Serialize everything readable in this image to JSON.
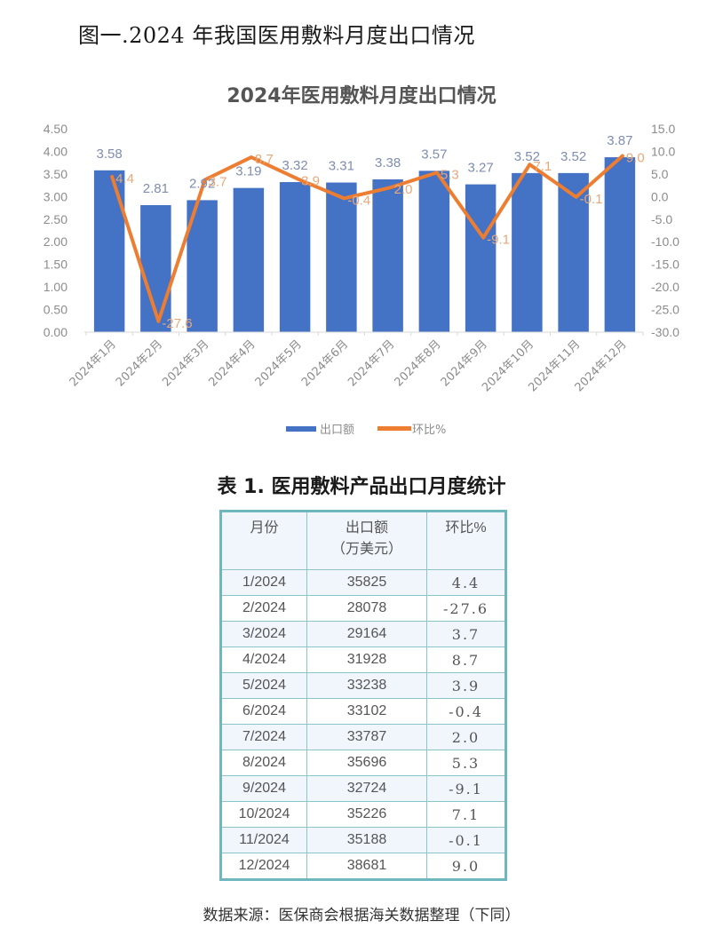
{
  "figure_caption": "图一.2024 年我国医用敷料月度出口情况",
  "chart_data": {
    "type": "bar+line",
    "title": "2024年医用敷料月度出口情况",
    "categories": [
      "2024年1月",
      "2024年2月",
      "2024年3月",
      "2024年4月",
      "2024年5月",
      "2024年6月",
      "2024年7月",
      "2024年8月",
      "2024年9月",
      "2024年10月",
      "2024年11月",
      "2024年12月"
    ],
    "series": [
      {
        "name": "出口额",
        "type": "bar",
        "axis": "left",
        "color": "#4472c4",
        "values": [
          3.58,
          2.81,
          2.92,
          3.19,
          3.32,
          3.31,
          3.38,
          3.57,
          3.27,
          3.52,
          3.52,
          3.87
        ],
        "labels": [
          "3.58",
          "2.81",
          "2.92",
          "3.19",
          "3.32",
          "3.31",
          "3.38",
          "3.57",
          "3.27",
          "3.52",
          "3.52",
          "3.87"
        ]
      },
      {
        "name": "环比%",
        "type": "line",
        "axis": "right",
        "color": "#ed7d31",
        "values": [
          4.4,
          -27.6,
          3.7,
          8.7,
          3.9,
          -0.4,
          2.0,
          5.3,
          -9.1,
          7.1,
          -0.1,
          9.0
        ],
        "labels": [
          "4.4",
          "-27.6",
          "3.7",
          "8.7",
          "3.9",
          "-0.4",
          "2.0",
          "5.3",
          "-9.1",
          "7.1",
          "-0.1",
          "9.0"
        ]
      }
    ],
    "y_left": {
      "ylim": [
        0,
        4.5
      ],
      "ticks": [
        "4.50",
        "4.00",
        "3.50",
        "3.00",
        "2.50",
        "2.00",
        "1.50",
        "1.00",
        "0.50",
        "0.00"
      ]
    },
    "y_right": {
      "ylim": [
        -30,
        15
      ],
      "ticks": [
        "15.0",
        "10.0",
        "5.0",
        "0.0",
        "-5.0",
        "-10.0",
        "-15.0",
        "-20.0",
        "-25.0",
        "-30.0"
      ]
    },
    "xlabel": "",
    "ylabel": "",
    "grid": false,
    "legend": {
      "position": "bottom",
      "items": [
        {
          "label": "出口额",
          "color": "#4472c4"
        },
        {
          "label": "环比%",
          "color": "#ed7d31"
        }
      ]
    }
  },
  "table": {
    "title": "表 1. 医用敷料产品出口月度统计",
    "headers": {
      "month": "月份",
      "amount_line1": "出口额",
      "amount_line2": "（万美元）",
      "mom": "环比%"
    },
    "rows": [
      {
        "month": "1/2024",
        "amount": "35825",
        "mom": "4.4"
      },
      {
        "month": "2/2024",
        "amount": "28078",
        "mom": "-27.6"
      },
      {
        "month": "3/2024",
        "amount": "29164",
        "mom": "3.7"
      },
      {
        "month": "4/2024",
        "amount": "31928",
        "mom": "8.7"
      },
      {
        "month": "5/2024",
        "amount": "33238",
        "mom": "3.9"
      },
      {
        "month": "6/2024",
        "amount": "33102",
        "mom": "-0.4"
      },
      {
        "month": "7/2024",
        "amount": "33787",
        "mom": "2.0"
      },
      {
        "month": "8/2024",
        "amount": "35696",
        "mom": "5.3"
      },
      {
        "month": "9/2024",
        "amount": "32724",
        "mom": "-9.1"
      },
      {
        "month": "10/2024",
        "amount": "35226",
        "mom": "7.1"
      },
      {
        "month": "11/2024",
        "amount": "35188",
        "mom": "-0.1"
      },
      {
        "month": "12/2024",
        "amount": "38681",
        "mom": "9.0"
      }
    ]
  },
  "source_note": "数据来源：医保商会根据海关数据整理（下同）"
}
